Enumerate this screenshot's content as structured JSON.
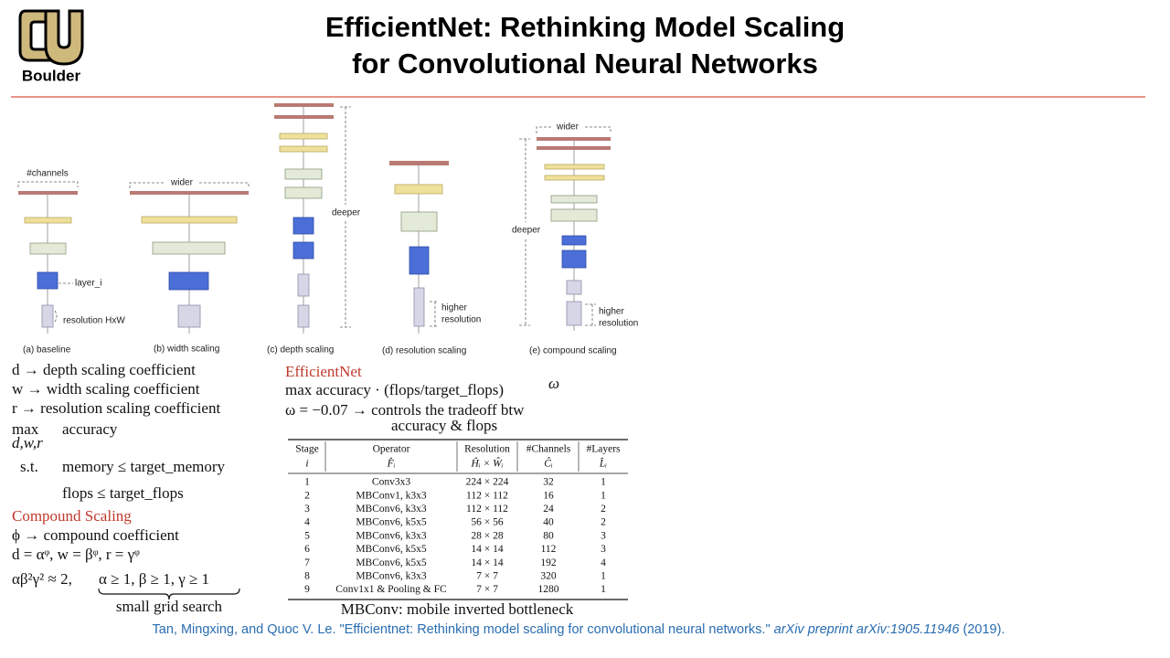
{
  "header": {
    "logo_text": "Boulder",
    "title_lines": [
      "EfficientNet: Rethinking Model Scaling",
      "for Convolutional Neural Networks"
    ]
  },
  "figure": {
    "channels_label": "#channels",
    "layer_label": "layer_i",
    "resolution_label": "resolution HxW",
    "width_label": "wider",
    "depth_label": "deeper",
    "higher_resolution_label": [
      "higher",
      "resolution"
    ],
    "compound_width_label": "wider",
    "compound_depth_label": "deeper",
    "compound_resolution_label": [
      "higher",
      "resolution"
    ],
    "captions": [
      "(a) baseline",
      "(b) width scaling",
      "(c) depth scaling",
      "(d) resolution scaling",
      "(e) compound scaling"
    ]
  },
  "definitions": [
    "d → depth scaling coefficient",
    "w → width scaling coefficient",
    "r → resolution scaling coefficient"
  ],
  "optimization": {
    "max": "max",
    "subscript": "d,w,r",
    "objective": "accuracy",
    "st": "s.t.",
    "constraints": [
      "memory ≤ target_memory",
      "flops ≤ target_flops"
    ]
  },
  "compound_scaling": {
    "heading": "Compound Scaling",
    "lines": [
      "ϕ → compound coefficient",
      "d = αᵠ, w = βᵠ, r = γᵠ"
    ],
    "constraint_left": "αβ²γ² ≈ 2,",
    "constraint_right": "α ≥ 1, β ≥ 1, γ ≥ 1",
    "brace_label": "small grid search"
  },
  "efficientnet": {
    "heading": "EfficientNet",
    "objective": "max accuracy · (flops/target_flops)",
    "objective_exponent": "ω",
    "tradeoff_lines": [
      "ω = −0.07 → controls the tradeoff btw",
      "accuracy & flops"
    ]
  },
  "table": {
    "header": [
      [
        "Stage",
        "i"
      ],
      [
        "Operator",
        "F̂ᵢ"
      ],
      [
        "Resolution",
        "Ĥᵢ × Ŵᵢ"
      ],
      [
        "#Channels",
        "Ĉᵢ"
      ],
      [
        "#Layers",
        "L̂ᵢ"
      ]
    ],
    "rows": [
      [
        "1",
        "Conv3x3",
        "224 × 224",
        "32",
        "1"
      ],
      [
        "2",
        "MBConv1, k3x3",
        "112 × 112",
        "16",
        "1"
      ],
      [
        "3",
        "MBConv6, k3x3",
        "112 × 112",
        "24",
        "2"
      ],
      [
        "4",
        "MBConv6, k5x5",
        "56 × 56",
        "40",
        "2"
      ],
      [
        "5",
        "MBConv6, k3x3",
        "28 × 28",
        "80",
        "3"
      ],
      [
        "6",
        "MBConv6, k5x5",
        "14 × 14",
        "112",
        "3"
      ],
      [
        "7",
        "MBConv6, k5x5",
        "14 × 14",
        "192",
        "4"
      ],
      [
        "8",
        "MBConv6, k3x3",
        "7 × 7",
        "320",
        "1"
      ],
      [
        "9",
        "Conv1x1 & Pooling & FC",
        "7 × 7",
        "1280",
        "1"
      ]
    ],
    "caption": "MBConv: mobile inverted bottleneck"
  },
  "citation": {
    "authors_title": "Tan, Mingxing, and Quoc V. Le. \"Efficientnet: Rethinking model scaling for convolutional neural networks.\" ",
    "venue": "arXiv preprint arXiv:1905.11946",
    "year": " (2019)."
  }
}
